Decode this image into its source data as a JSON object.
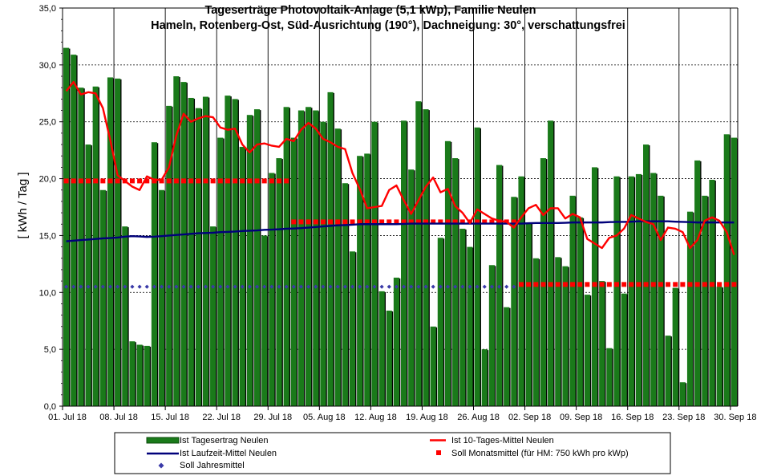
{
  "chart_data": {
    "type": "bar",
    "title": "Tageserträge Photovoltaik-Anlage (5,1 kWp),  Familie Neulen",
    "subtitle": "Hameln, Rotenberg-Ost, Süd-Ausrichtung (190°), Dachneigung: 30°, verschattungsfrei",
    "ylabel": "[ kWh / Tag ]",
    "ylim": [
      0,
      35
    ],
    "y_ticks": [
      "0,0",
      "5,0",
      "10,0",
      "15,0",
      "20,0",
      "25,0",
      "30,0",
      "35,0"
    ],
    "x_tick_labels": [
      "01. Jul 18",
      "08. Jul 18",
      "15. Jul 18",
      "22. Jul 18",
      "29. Jul 18",
      "05. Aug 18",
      "12. Aug 18",
      "19. Aug 18",
      "26. Aug 18",
      "02. Sep 18",
      "09. Sep 18",
      "16. Sep 18",
      "23. Sep 18",
      "30. Sep 18"
    ],
    "grid": true,
    "legend_position": "bottom",
    "legend": [
      {
        "name": "Ist Tagesertrag Neulen",
        "marker": "bar",
        "color": "#1a7a1a"
      },
      {
        "name": "Ist 10-Tages-Mittel Neulen",
        "marker": "line",
        "color": "#ff0000"
      },
      {
        "name": "Ist Laufzeit-Mittel Neulen",
        "marker": "line",
        "color": "#00007a"
      },
      {
        "name": "Soll Monatsmittel (für HM: 750 kWh pro kWp)",
        "marker": "square",
        "color": "#ff0000"
      },
      {
        "name": "Soll Jahresmittel",
        "marker": "diamond",
        "color": "#3a3aa8"
      }
    ],
    "series": [
      {
        "name": "Ist Tagesertrag Neulen",
        "type": "bar",
        "color": "#1a7a1a",
        "values": [
          31.5,
          30.9,
          28.0,
          23.0,
          28.1,
          19.0,
          28.9,
          28.8,
          15.8,
          5.7,
          5.4,
          5.3,
          23.2,
          19.0,
          26.4,
          29.0,
          28.5,
          27.1,
          26.2,
          27.2,
          15.8,
          23.6,
          27.3,
          27.0,
          22.8,
          25.6,
          26.1,
          15.0,
          20.5,
          21.8,
          26.3,
          23.6,
          26.0,
          26.3,
          26.0,
          25.0,
          27.6,
          24.4,
          19.6,
          13.6,
          22.0,
          22.2,
          25.0,
          10.1,
          8.4,
          11.3,
          25.1,
          20.8,
          26.8,
          26.1,
          7.0,
          14.8,
          23.3,
          21.8,
          15.6,
          14.0,
          24.5,
          5.0,
          12.4,
          21.2,
          8.7,
          18.4,
          20.2,
          16.1,
          13.0,
          21.8,
          25.1,
          13.1,
          12.3,
          18.5,
          16.6,
          9.8,
          21.0,
          11.0,
          5.1,
          20.2,
          9.9,
          20.2,
          20.4,
          23.0,
          20.5,
          18.5,
          6.2,
          10.4,
          2.1,
          17.1,
          21.6,
          18.5,
          19.9,
          10.5,
          23.9,
          23.6
        ]
      },
      {
        "name": "Ist 10-Tages-Mittel Neulen",
        "type": "line",
        "color": "#ff0000",
        "values": [
          27.7,
          28.5,
          27.4,
          27.6,
          27.5,
          26.2,
          23.4,
          20.3,
          19.8,
          19.3,
          19.0,
          20.2,
          19.9,
          19.9,
          21.0,
          23.8,
          25.7,
          25.0,
          25.3,
          25.5,
          25.4,
          24.5,
          24.3,
          24.4,
          23.0,
          22.3,
          23.0,
          23.1,
          22.9,
          22.8,
          23.5,
          23.3,
          24.3,
          24.9,
          24.4,
          23.5,
          23.2,
          22.8,
          22.6,
          20.5,
          19.1,
          17.4,
          17.5,
          17.6,
          19.0,
          19.4,
          18.1,
          16.9,
          18.1,
          19.3,
          20.1,
          18.8,
          19.1,
          17.6,
          17.0,
          16.1,
          17.3,
          16.9,
          16.5,
          16.3,
          16.2,
          15.7,
          16.6,
          17.4,
          17.7,
          16.8,
          17.4,
          17.4,
          16.5,
          16.9,
          16.6,
          14.7,
          14.3,
          13.9,
          14.8,
          15.0,
          15.6,
          16.8,
          16.5,
          16.2,
          16.0,
          14.6,
          15.7,
          15.6,
          15.3,
          13.9,
          14.6,
          16.3,
          16.6,
          16.3,
          15.3,
          13.3
        ]
      },
      {
        "name": "Ist Laufzeit-Mittel Neulen",
        "type": "line",
        "color": "#00007a",
        "values": [
          14.5,
          14.55,
          14.6,
          14.65,
          14.7,
          14.75,
          14.78,
          14.82,
          14.9,
          14.95,
          14.92,
          14.88,
          14.9,
          14.95,
          15.0,
          15.05,
          15.1,
          15.15,
          15.2,
          15.22,
          15.25,
          15.3,
          15.32,
          15.35,
          15.4,
          15.42,
          15.45,
          15.5,
          15.52,
          15.55,
          15.6,
          15.62,
          15.65,
          15.7,
          15.75,
          15.8,
          15.85,
          15.9,
          15.92,
          15.95,
          16.0,
          16.0,
          16.0,
          16.0,
          16.0,
          16.0,
          16.02,
          16.05,
          16.05,
          16.05,
          16.05,
          16.05,
          16.05,
          16.05,
          16.05,
          16.05,
          16.05,
          16.05,
          16.05,
          16.05,
          16.05,
          16.05,
          16.05,
          16.08,
          16.1,
          16.1,
          16.1,
          16.1,
          16.12,
          16.15,
          16.15,
          16.15,
          16.15,
          16.15,
          16.18,
          16.2,
          16.2,
          16.22,
          16.25,
          16.25,
          16.25,
          16.25,
          16.25,
          16.22,
          16.2,
          16.18,
          16.15,
          16.15,
          16.15,
          16.15,
          16.15,
          16.15
        ]
      },
      {
        "name": "Soll Monatsmittel (für HM: 750 kWh pro kWp)",
        "type": "markers",
        "color": "#ff0000",
        "segments": [
          {
            "from_day": 1,
            "to_day": 31,
            "value": 19.8
          },
          {
            "from_day": 32,
            "to_day": 62,
            "value": 16.2
          },
          {
            "from_day": 63,
            "to_day": 92,
            "value": 10.7
          }
        ]
      },
      {
        "name": "Soll Jahresmittel",
        "type": "markers",
        "color": "#3a3aa8",
        "value": 10.5
      }
    ]
  }
}
